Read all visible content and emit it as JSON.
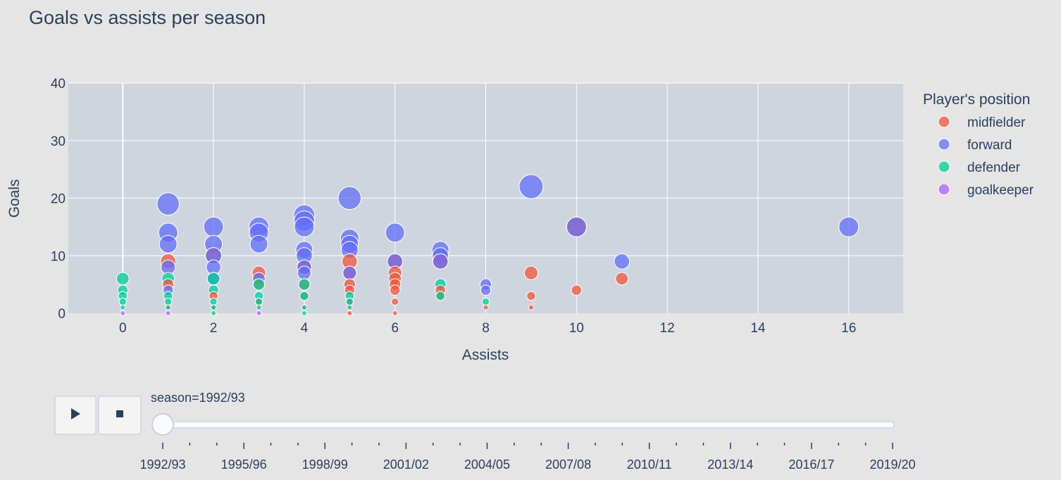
{
  "chart_data": {
    "type": "scatter",
    "title": "Goals vs assists per season",
    "xlabel": "Assists",
    "ylabel": "Goals",
    "xlim": [
      -1.2,
      17.2
    ],
    "ylim": [
      0,
      40
    ],
    "x_ticks": [
      0,
      2,
      4,
      6,
      8,
      10,
      12,
      14,
      16
    ],
    "y_ticks": [
      0,
      10,
      20,
      30,
      40
    ],
    "grid": true,
    "marker_size": "bubble size proportional to goals",
    "legend": {
      "title": "Player's position",
      "placement": "right",
      "entries": [
        {
          "name": "midfielder",
          "color": "#EF553B"
        },
        {
          "name": "forward",
          "color": "#636EFA"
        },
        {
          "name": "defender",
          "color": "#00CC96"
        },
        {
          "name": "goalkeeper",
          "color": "#AB63FA"
        }
      ]
    },
    "series": [
      {
        "name": "midfielder",
        "color": "#EF553B",
        "points": [
          {
            "x": 1,
            "y": 9
          },
          {
            "x": 1,
            "y": 5
          },
          {
            "x": 1,
            "y": 1
          },
          {
            "x": 2,
            "y": 10
          },
          {
            "x": 2,
            "y": 3
          },
          {
            "x": 2,
            "y": 1
          },
          {
            "x": 3,
            "y": 7
          },
          {
            "x": 3,
            "y": 5
          },
          {
            "x": 3,
            "y": 2
          },
          {
            "x": 4,
            "y": 8
          },
          {
            "x": 4,
            "y": 5
          },
          {
            "x": 4,
            "y": 3
          },
          {
            "x": 4,
            "y": 1
          },
          {
            "x": 5,
            "y": 9
          },
          {
            "x": 5,
            "y": 7
          },
          {
            "x": 5,
            "y": 5
          },
          {
            "x": 5,
            "y": 4
          },
          {
            "x": 5,
            "y": 2
          },
          {
            "x": 5,
            "y": 0
          },
          {
            "x": 6,
            "y": 9
          },
          {
            "x": 6,
            "y": 7
          },
          {
            "x": 6,
            "y": 6
          },
          {
            "x": 6,
            "y": 5
          },
          {
            "x": 6,
            "y": 4
          },
          {
            "x": 6,
            "y": 2
          },
          {
            "x": 6,
            "y": 0
          },
          {
            "x": 7,
            "y": 9
          },
          {
            "x": 7,
            "y": 4
          },
          {
            "x": 7,
            "y": 3
          },
          {
            "x": 8,
            "y": 1
          },
          {
            "x": 9,
            "y": 7
          },
          {
            "x": 9,
            "y": 3
          },
          {
            "x": 9,
            "y": 1
          },
          {
            "x": 10,
            "y": 15
          },
          {
            "x": 10,
            "y": 4
          },
          {
            "x": 11,
            "y": 6
          }
        ]
      },
      {
        "name": "forward",
        "color": "#636EFA",
        "points": [
          {
            "x": 1,
            "y": 19
          },
          {
            "x": 1,
            "y": 14
          },
          {
            "x": 1,
            "y": 12
          },
          {
            "x": 1,
            "y": 8
          },
          {
            "x": 1,
            "y": 4
          },
          {
            "x": 2,
            "y": 15
          },
          {
            "x": 2,
            "y": 12
          },
          {
            "x": 2,
            "y": 10
          },
          {
            "x": 2,
            "y": 8
          },
          {
            "x": 2,
            "y": 6
          },
          {
            "x": 3,
            "y": 15
          },
          {
            "x": 3,
            "y": 14
          },
          {
            "x": 3,
            "y": 12
          },
          {
            "x": 3,
            "y": 6
          },
          {
            "x": 4,
            "y": 17
          },
          {
            "x": 4,
            "y": 16
          },
          {
            "x": 4,
            "y": 15
          },
          {
            "x": 4,
            "y": 11
          },
          {
            "x": 4,
            "y": 10
          },
          {
            "x": 4,
            "y": 8
          },
          {
            "x": 4,
            "y": 7
          },
          {
            "x": 5,
            "y": 20
          },
          {
            "x": 5,
            "y": 13
          },
          {
            "x": 5,
            "y": 12
          },
          {
            "x": 5,
            "y": 11
          },
          {
            "x": 5,
            "y": 7
          },
          {
            "x": 6,
            "y": 14
          },
          {
            "x": 6,
            "y": 9
          },
          {
            "x": 7,
            "y": 11
          },
          {
            "x": 7,
            "y": 10
          },
          {
            "x": 7,
            "y": 9
          },
          {
            "x": 8,
            "y": 5
          },
          {
            "x": 8,
            "y": 4
          },
          {
            "x": 9,
            "y": 22
          },
          {
            "x": 10,
            "y": 15
          },
          {
            "x": 11,
            "y": 9
          },
          {
            "x": 16,
            "y": 15
          }
        ]
      },
      {
        "name": "defender",
        "color": "#00CC96",
        "points": [
          {
            "x": 0,
            "y": 6
          },
          {
            "x": 0,
            "y": 4
          },
          {
            "x": 0,
            "y": 3
          },
          {
            "x": 0,
            "y": 2
          },
          {
            "x": 0,
            "y": 1
          },
          {
            "x": 1,
            "y": 6
          },
          {
            "x": 1,
            "y": 3
          },
          {
            "x": 1,
            "y": 2
          },
          {
            "x": 1,
            "y": 1
          },
          {
            "x": 2,
            "y": 6
          },
          {
            "x": 2,
            "y": 4
          },
          {
            "x": 2,
            "y": 2
          },
          {
            "x": 2,
            "y": 1
          },
          {
            "x": 2,
            "y": 0
          },
          {
            "x": 3,
            "y": 5
          },
          {
            "x": 3,
            "y": 3
          },
          {
            "x": 3,
            "y": 2
          },
          {
            "x": 3,
            "y": 1
          },
          {
            "x": 4,
            "y": 5
          },
          {
            "x": 4,
            "y": 3
          },
          {
            "x": 4,
            "y": 1
          },
          {
            "x": 4,
            "y": 0
          },
          {
            "x": 5,
            "y": 3
          },
          {
            "x": 5,
            "y": 2
          },
          {
            "x": 5,
            "y": 1
          },
          {
            "x": 7,
            "y": 5
          },
          {
            "x": 7,
            "y": 3
          },
          {
            "x": 8,
            "y": 2
          }
        ]
      },
      {
        "name": "goalkeeper",
        "color": "#AB63FA",
        "points": [
          {
            "x": 0,
            "y": 0
          },
          {
            "x": 1,
            "y": 0
          },
          {
            "x": 3,
            "y": 0
          }
        ]
      }
    ]
  },
  "animation": {
    "play_icon": "play-icon",
    "stop_icon": "stop-icon",
    "current_label": "season=1992/93",
    "current_index": 0,
    "step_count": 28,
    "labeled_steps": [
      "1992/93",
      "1995/96",
      "1998/99",
      "2001/02",
      "2004/05",
      "2007/08",
      "2010/11",
      "2013/14",
      "2016/17",
      "2019/20"
    ]
  }
}
